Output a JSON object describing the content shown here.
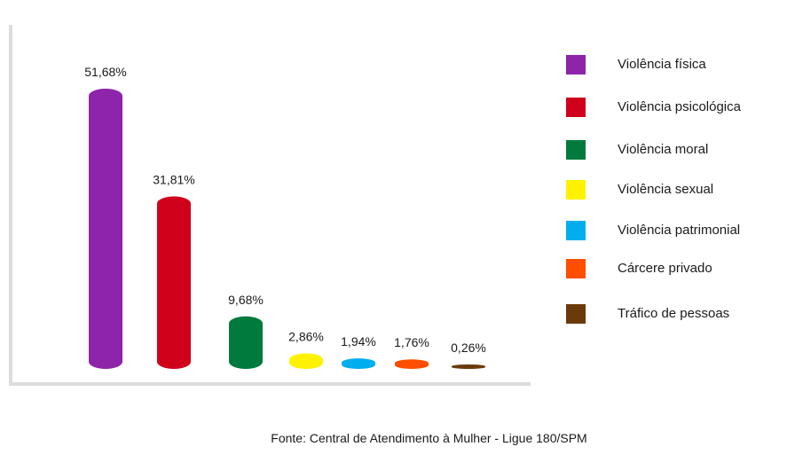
{
  "chart_data": {
    "type": "bar",
    "categories": [
      "Violência física",
      "Violência psicológica",
      "Violência moral",
      "Violência sexual",
      "Violência patrimonial",
      "Cárcere privado",
      "Tráfico de pessoas"
    ],
    "values": [
      51.68,
      31.81,
      9.68,
      2.86,
      1.94,
      1.76,
      0.26
    ],
    "value_labels": [
      "51,68%",
      "31,81%",
      "9,68%",
      "2,86%",
      "1,94%",
      "1,76%",
      "0,26%"
    ],
    "colors": [
      "#8E24AA",
      "#D0021B",
      "#007A3D",
      "#FFF200",
      "#00AEEF",
      "#FF4E00",
      "#6B3A0A"
    ],
    "ylim": [
      0,
      51.68
    ],
    "grid": false,
    "legend_position": "right"
  },
  "legend": {
    "items": [
      {
        "label": "Violência física",
        "color": "#8E24AA"
      },
      {
        "label": "Violência psicológica",
        "color": "#D0021B"
      },
      {
        "label": "Violência moral",
        "color": "#007A3D"
      },
      {
        "label": "Violência sexual",
        "color": "#FFF200"
      },
      {
        "label": "Violência patrimonial",
        "color": "#00AEEF"
      },
      {
        "label": "Cárcere privado",
        "color": "#FF4E00"
      },
      {
        "label": "Tráfico de pessoas",
        "color": "#6B3A0A"
      }
    ]
  },
  "source": "Fonte: Central de Atendimento à Mulher - Ligue 180/SPM"
}
